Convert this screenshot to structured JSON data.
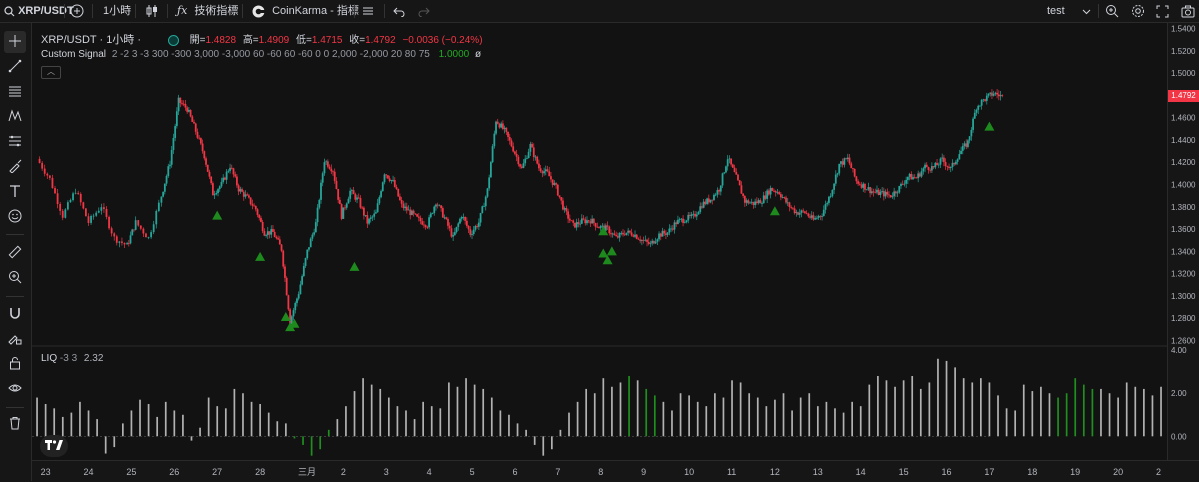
{
  "topbar": {
    "symbol": "XRP/USDT",
    "interval": "1小時",
    "indicators_label": "技術指標",
    "script_label": "CoinKarma - 指標",
    "layout_name": "test"
  },
  "legend": {
    "title": "XRP/USDT · 1小時 ·",
    "open_label": "開=",
    "open_value": "1.4828",
    "high_label": "高=",
    "high_value": "1.4909",
    "low_label": "低=",
    "low_value": "1.4715",
    "close_label": "收=",
    "close_value": "1.4792",
    "change_value": "−0.0036 (−0.24%)",
    "indicator_name": "Custom Signal",
    "indicator_params": "2 -2 3 -3 300 -300 3,000 -3,000 60 -60 60 -60 0 0 2,000 -2,000 20 80 75",
    "indicator_value": "1.0000",
    "indicator_value_suffix": "ø",
    "liq_label": "LIQ",
    "liq_params": "-3 3",
    "liq_value": "2.32"
  },
  "colors": {
    "up": "#26a69a",
    "down": "#f23645",
    "signal": "#1e8a1e",
    "liq_bar": "#b2b2b2",
    "liq_highlight": "#1f8f1f"
  },
  "icons": [
    "search-icon",
    "plus-circle-icon",
    "candles-icon",
    "fx-icon",
    "coinkarma-icon",
    "list-icon",
    "undo-icon",
    "redo-icon",
    "chevron-down-icon",
    "zoom-icon",
    "settings-icon",
    "fullscreen-icon",
    "camera-icon",
    "crosshair-icon",
    "trendline-icon",
    "fib-icon",
    "pattern-icon",
    "projection-icon",
    "brush-icon",
    "text-icon",
    "emoji-icon",
    "ruler-icon",
    "zoom-in-icon",
    "magnet-icon",
    "pencil-lock-icon",
    "lock-icon",
    "eye-icon",
    "trash-icon",
    "tradingview-logo-icon"
  ],
  "chart_data": [
    {
      "type": "candlestick",
      "title": "XRP/USDT · 1小時",
      "x_tick_labels": [
        "23",
        "24",
        "25",
        "26",
        "27",
        "28",
        "三月",
        "2",
        "3",
        "4",
        "5",
        "6",
        "7",
        "8",
        "9",
        "10",
        "11",
        "12",
        "13",
        "14",
        "15",
        "16",
        "17",
        "18",
        "19",
        "20",
        "2"
      ],
      "y_tick_labels": [
        "1.5400",
        "1.5200",
        "1.5000",
        "1.4800",
        "1.4600",
        "1.4400",
        "1.4200",
        "1.4000",
        "1.3800",
        "1.3600",
        "1.3400",
        "1.3200",
        "1.3000",
        "1.2800",
        "1.2600"
      ],
      "ylim": [
        1.255,
        1.545
      ],
      "last_price": 1.4792,
      "last_price_label": "1.4792",
      "close_series_approx": [
        [
          22.8,
          1.423
        ],
        [
          23.1,
          1.405
        ],
        [
          23.4,
          1.372
        ],
        [
          23.7,
          1.395
        ],
        [
          24.0,
          1.366
        ],
        [
          24.3,
          1.381
        ],
        [
          24.6,
          1.352
        ],
        [
          24.9,
          1.345
        ],
        [
          25.1,
          1.366
        ],
        [
          25.4,
          1.352
        ],
        [
          25.7,
          1.39
        ],
        [
          25.9,
          1.42
        ],
        [
          26.1,
          1.475
        ],
        [
          26.3,
          1.468
        ],
        [
          26.5,
          1.448
        ],
        [
          26.7,
          1.426
        ],
        [
          26.9,
          1.392
        ],
        [
          27.1,
          1.4
        ],
        [
          27.3,
          1.417
        ],
        [
          27.5,
          1.396
        ],
        [
          27.7,
          1.388
        ],
        [
          27.9,
          1.378
        ],
        [
          28.1,
          1.357
        ],
        [
          28.3,
          1.357
        ],
        [
          28.5,
          1.342
        ],
        [
          28.7,
          1.277
        ],
        [
          28.9,
          1.303
        ],
        [
          29.1,
          1.34
        ],
        [
          29.3,
          1.365
        ],
        [
          29.5,
          1.422
        ],
        [
          29.7,
          1.413
        ],
        [
          29.9,
          1.372
        ],
        [
          30.1,
          1.394
        ],
        [
          30.3,
          1.385
        ],
        [
          30.5,
          1.366
        ],
        [
          30.7,
          1.374
        ],
        [
          30.9,
          1.411
        ],
        [
          31.1,
          1.402
        ],
        [
          31.3,
          1.381
        ],
        [
          31.5,
          1.375
        ],
        [
          31.7,
          1.368
        ],
        [
          31.9,
          1.364
        ],
        [
          32.1,
          1.385
        ],
        [
          32.3,
          1.37
        ],
        [
          32.5,
          1.352
        ],
        [
          32.7,
          1.373
        ],
        [
          32.9,
          1.356
        ],
        [
          33.1,
          1.366
        ],
        [
          33.3,
          1.395
        ],
        [
          33.5,
          1.458
        ],
        [
          33.7,
          1.448
        ],
        [
          33.9,
          1.432
        ],
        [
          34.1,
          1.414
        ],
        [
          34.3,
          1.435
        ],
        [
          34.5,
          1.415
        ],
        [
          34.7,
          1.41
        ],
        [
          34.9,
          1.397
        ],
        [
          35.1,
          1.376
        ],
        [
          35.3,
          1.363
        ],
        [
          35.5,
          1.367
        ],
        [
          35.7,
          1.368
        ],
        [
          35.9,
          1.362
        ],
        [
          36.1,
          1.36
        ],
        [
          36.3,
          1.352
        ],
        [
          36.5,
          1.357
        ],
        [
          36.7,
          1.356
        ],
        [
          36.9,
          1.35
        ],
        [
          37.1,
          1.346
        ],
        [
          37.3,
          1.355
        ],
        [
          37.5,
          1.357
        ],
        [
          37.7,
          1.366
        ],
        [
          37.9,
          1.369
        ],
        [
          38.1,
          1.371
        ],
        [
          38.3,
          1.382
        ],
        [
          38.5,
          1.387
        ],
        [
          38.7,
          1.396
        ],
        [
          38.9,
          1.424
        ],
        [
          39.1,
          1.406
        ],
        [
          39.3,
          1.385
        ],
        [
          39.5,
          1.383
        ],
        [
          39.7,
          1.386
        ],
        [
          39.9,
          1.396
        ],
        [
          40.1,
          1.393
        ],
        [
          40.3,
          1.382
        ],
        [
          40.5,
          1.375
        ],
        [
          40.7,
          1.375
        ],
        [
          40.9,
          1.368
        ],
        [
          41.1,
          1.374
        ],
        [
          41.3,
          1.392
        ],
        [
          41.5,
          1.418
        ],
        [
          41.7,
          1.423
        ],
        [
          41.9,
          1.403
        ],
        [
          42.1,
          1.398
        ],
        [
          42.3,
          1.393
        ],
        [
          42.5,
          1.392
        ],
        [
          42.7,
          1.39
        ],
        [
          42.9,
          1.397
        ],
        [
          43.1,
          1.407
        ],
        [
          43.3,
          1.406
        ],
        [
          43.5,
          1.416
        ],
        [
          43.7,
          1.415
        ],
        [
          43.9,
          1.422
        ],
        [
          44.1,
          1.414
        ],
        [
          44.3,
          1.428
        ],
        [
          44.5,
          1.438
        ],
        [
          44.7,
          1.47
        ],
        [
          44.9,
          1.477
        ],
        [
          45.1,
          1.482
        ],
        [
          45.3,
          1.479
        ]
      ],
      "signals": [
        {
          "x": 27.0,
          "y": 1.372
        },
        {
          "x": 28.0,
          "y": 1.335
        },
        {
          "x": 28.6,
          "y": 1.281
        },
        {
          "x": 28.7,
          "y": 1.272
        },
        {
          "x": 28.8,
          "y": 1.275
        },
        {
          "x": 30.2,
          "y": 1.326
        },
        {
          "x": 36.0,
          "y": 1.358
        },
        {
          "x": 36.0,
          "y": 1.338
        },
        {
          "x": 36.1,
          "y": 1.332
        },
        {
          "x": 36.2,
          "y": 1.34
        },
        {
          "x": 40.0,
          "y": 1.376
        },
        {
          "x": 45.0,
          "y": 1.452
        }
      ]
    },
    {
      "type": "bar",
      "title": "LIQ",
      "y_tick_labels": [
        "4.00",
        "2.00",
        "0.00"
      ],
      "ylim": [
        -1.1,
        4.1
      ],
      "x_start": 22.8,
      "x_step": 0.2,
      "values": [
        1.8,
        1.5,
        1.3,
        0.9,
        1.1,
        1.6,
        1.2,
        0.8,
        -0.8,
        -0.5,
        0.6,
        1.2,
        1.7,
        1.5,
        0.9,
        1.6,
        1.2,
        1.0,
        -0.2,
        0.4,
        1.8,
        1.4,
        1.3,
        2.2,
        2.0,
        1.6,
        1.5,
        1.1,
        0.7,
        0.6,
        -0.1,
        -0.4,
        -0.9,
        -0.6,
        0.3,
        0.8,
        1.4,
        2.1,
        2.7,
        2.4,
        2.2,
        1.8,
        1.4,
        1.2,
        0.8,
        1.6,
        1.4,
        1.3,
        2.5,
        2.3,
        2.7,
        2.4,
        2.2,
        1.8,
        1.2,
        1.0,
        0.6,
        0.3,
        -0.4,
        -0.9,
        -0.6,
        0.3,
        1.1,
        1.6,
        2.2,
        2.0,
        2.7,
        2.3,
        2.5,
        2.8,
        2.6,
        2.2,
        1.9,
        1.6,
        1.2,
        2.0,
        1.9,
        1.6,
        1.4,
        2.0,
        1.8,
        2.6,
        2.5,
        2.0,
        1.8,
        1.4,
        1.7,
        2.0,
        1.2,
        1.8,
        2.0,
        1.4,
        1.6,
        1.3,
        1.1,
        1.6,
        1.4,
        2.4,
        2.8,
        2.6,
        2.3,
        2.6,
        2.8,
        2.2,
        2.5,
        3.6,
        3.5,
        3.2,
        2.7,
        2.5,
        2.7,
        2.5,
        1.9,
        1.3,
        1.2,
        2.4,
        2.1,
        2.3,
        2.0,
        1.8,
        2.0,
        2.7,
        2.4,
        2.2,
        2.2,
        2.0,
        1.8,
        2.5,
        2.3,
        2.2,
        1.9,
        2.3,
        2.0,
        1.7,
        1.5,
        1.6,
        2.2,
        1.7,
        1.8,
        2.0,
        2.3,
        2.1,
        2.0,
        1.6,
        1.3,
        1.4,
        1.1,
        1.5,
        1.2,
        1.6,
        0.9,
        1.4,
        -0.6,
        1.1,
        1.3,
        1.0,
        1.3,
        1.5,
        1.3,
        1.7,
        2.0,
        1.6,
        1.3,
        1.6,
        1.4,
        1.7,
        1.2,
        1.1,
        0.8,
        1.3,
        1.7,
        -0.1,
        1.0,
        1.2,
        1.3,
        1.0,
        1.6,
        1.0,
        1.2,
        1.8,
        1.5,
        1.4,
        1.8,
        1.3,
        3.3,
        3.0,
        2.8,
        2.7,
        2.6,
        2.4,
        2.1,
        2.3,
        2.5,
        2.3,
        1.9,
        1.6,
        1.4,
        2.0,
        2.4,
        2.1,
        2.5,
        1.6,
        1.9,
        2.4,
        2.0,
        1.8,
        2.2,
        2.2,
        2.6,
        2.6,
        2.4,
        2.9,
        2.7,
        2.6,
        2.8,
        2.7,
        2.5,
        2.6,
        2.9,
        2.3,
        3.2,
        2.3
      ],
      "highlight_indices": [
        30,
        31,
        32,
        33,
        34,
        69,
        71,
        72,
        119,
        120,
        121,
        122,
        123,
        224,
        237
      ]
    }
  ]
}
